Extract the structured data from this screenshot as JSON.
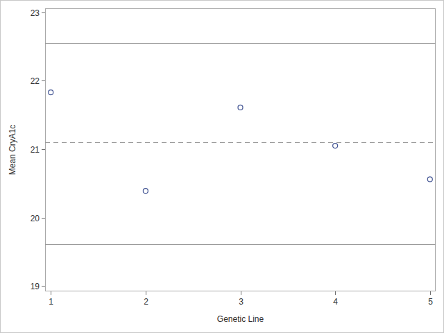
{
  "chart_data": {
    "type": "scatter",
    "x_label": "Genetic Line",
    "y_label": "Mean CryA1c",
    "x": [
      1,
      2,
      3,
      4,
      5
    ],
    "values": [
      21.83,
      20.39,
      21.61,
      21.05,
      20.56
    ],
    "color": "#445694",
    "marker": "circle",
    "xlim": [
      0.94,
      5.06
    ],
    "xticks": [
      1,
      2,
      3,
      4,
      5
    ],
    "ylim": [
      18.92,
      23.06
    ],
    "yticks": [
      19,
      20,
      21,
      22,
      23
    ],
    "center_line": 21.1,
    "upper_limit": 22.55,
    "lower_limit": 19.61,
    "grid": false
  }
}
